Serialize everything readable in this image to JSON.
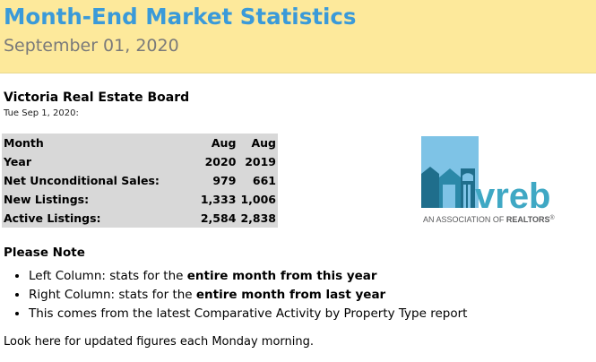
{
  "banner": {
    "title": "Month-End Market Statistics",
    "date": "September 01, 2020"
  },
  "board": {
    "name": "Victoria Real Estate Board",
    "as_of": "Tue Sep 1, 2020:"
  },
  "stats": {
    "rows": [
      {
        "label": "Month",
        "v1": "Aug",
        "v2": "Aug"
      },
      {
        "label": "Year",
        "v1": "2020",
        "v2": "2019"
      },
      {
        "label": "Net Unconditional Sales:",
        "v1": "979",
        "v2": "661"
      },
      {
        "label": "New Listings:",
        "v1": "1,333",
        "v2": "1,006"
      },
      {
        "label": "Active Listings:",
        "v1": "2,584",
        "v2": "2,838"
      }
    ]
  },
  "logo": {
    "wordmark": "vreb",
    "tagline_prefix": "AN ASSOCIATION OF ",
    "tagline_strong": "REALTORS",
    "tagline_mark": "®",
    "colors": {
      "sky": "#7ec3e6",
      "navy": "#1f6e8c",
      "teal": "#3fa8c4",
      "grey": "#58595b"
    }
  },
  "note": {
    "title": "Please Note",
    "items": [
      {
        "text": "Left Column: stats for the ",
        "strong": "entire month from this year"
      },
      {
        "text": "Right Column: stats for the ",
        "strong": "entire month from last year"
      },
      {
        "text": "This comes from the latest Comparative Activity by Property Type report",
        "strong": ""
      }
    ]
  },
  "footer": "Look here for updated figures each Monday morning.",
  "colors": {
    "banner_bg": "#fde99b",
    "title": "#3a9ad9",
    "table_bg": "#d8d8d8"
  }
}
